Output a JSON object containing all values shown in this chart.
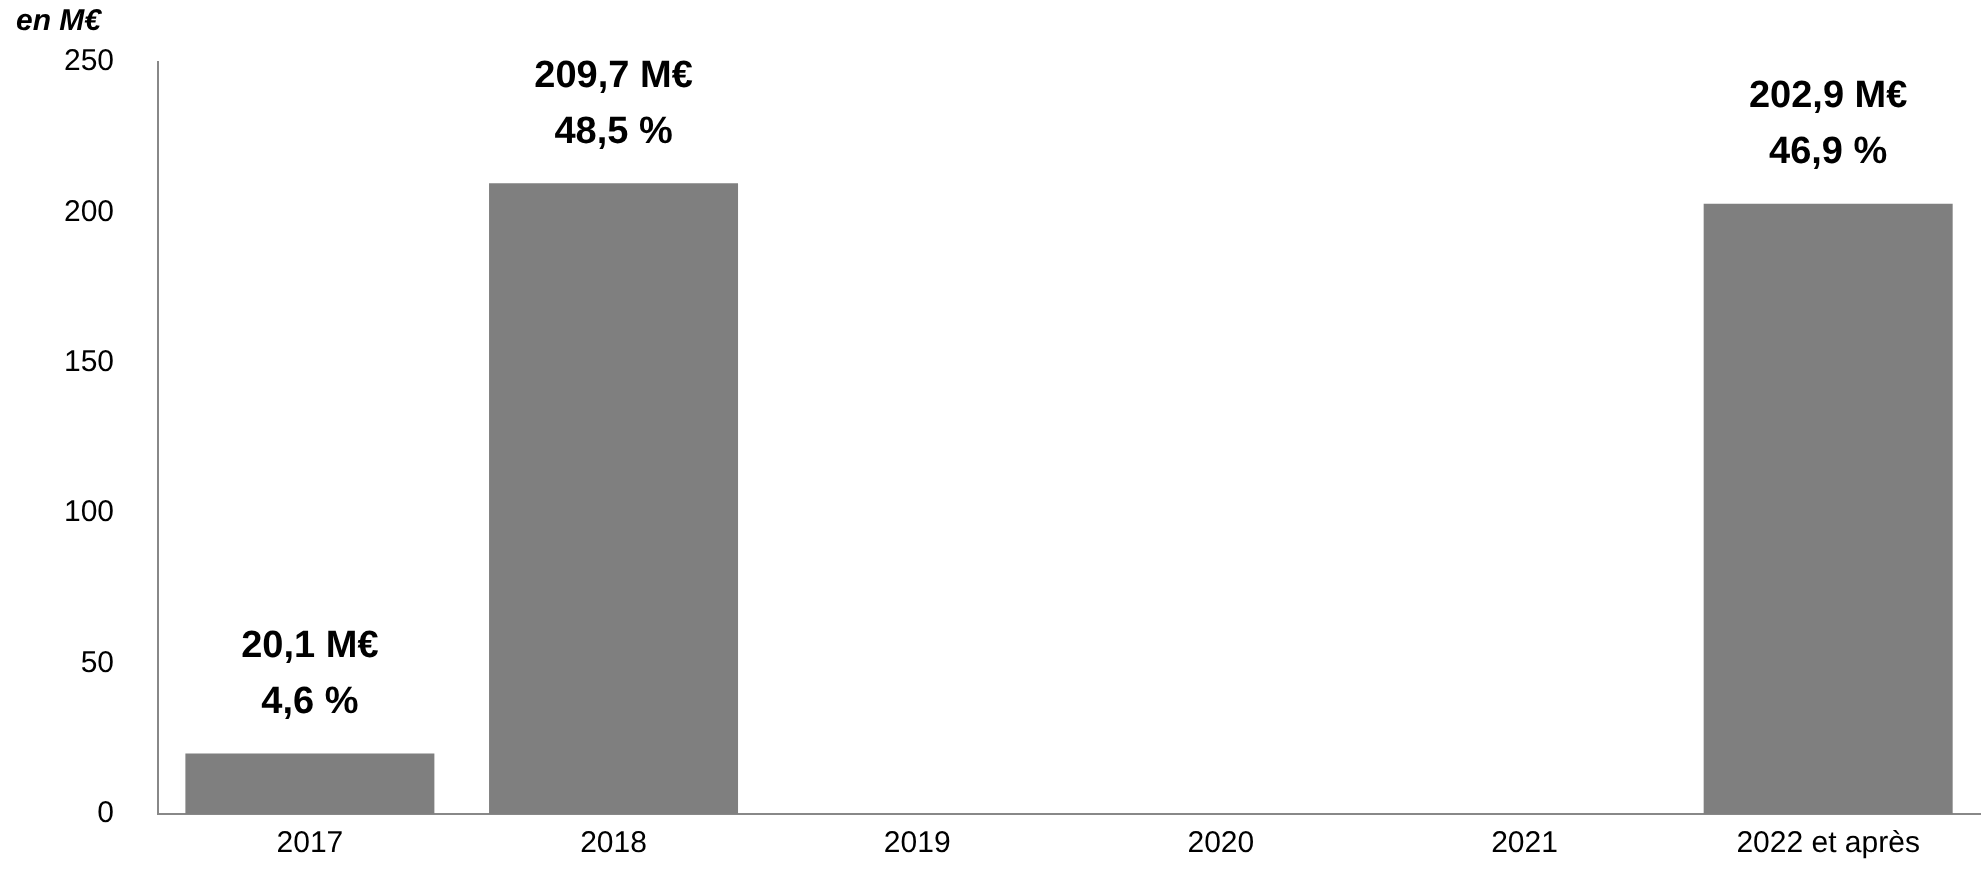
{
  "chart_data": {
    "type": "bar",
    "ylabel": "en M€",
    "categories": [
      "2017",
      "2018",
      "2019",
      "2020",
      "2021",
      "2022 et après"
    ],
    "values": [
      20.1,
      209.7,
      null,
      null,
      null,
      202.9
    ],
    "value_labels": [
      "20,1 M€\n4,6 %",
      "209,7 M€\n48,5 %",
      null,
      null,
      null,
      "202,9 M€\n46,9 %"
    ],
    "color": "#7f7f7f",
    "ylim": [
      0,
      250
    ],
    "yticks": [
      0,
      50,
      100,
      150,
      200,
      250
    ],
    "grid": false,
    "legend": false
  }
}
